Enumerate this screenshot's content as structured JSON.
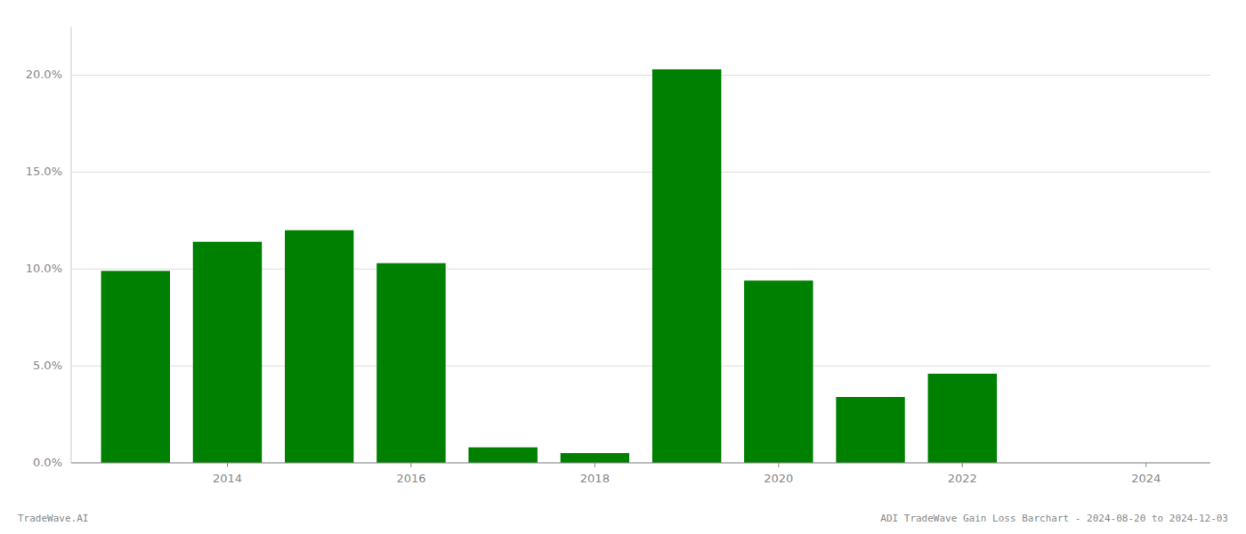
{
  "chart_data": {
    "type": "bar",
    "x": [
      2013,
      2014,
      2015,
      2016,
      2017,
      2018,
      2019,
      2020,
      2021,
      2022,
      2023
    ],
    "values": [
      0.099,
      0.114,
      0.12,
      0.103,
      0.008,
      0.005,
      0.203,
      0.094,
      0.034,
      0.046,
      0.0
    ],
    "color": "#008000",
    "xlim": [
      2012.3,
      2024.7
    ],
    "xticks": [
      2014,
      2016,
      2018,
      2020,
      2022,
      2024
    ],
    "ylim": [
      0,
      0.225
    ],
    "yticks": [
      {
        "value": 0.0,
        "label": "0.0%"
      },
      {
        "value": 0.05,
        "label": "5.0%"
      },
      {
        "value": 0.1,
        "label": "10.0%"
      },
      {
        "value": 0.15,
        "label": "15.0%"
      },
      {
        "value": 0.2,
        "label": "20.0%"
      }
    ],
    "grid": true,
    "annotations": [
      "TradeWave.AI",
      "ADI TradeWave Gain Loss Barchart - 2024-08-20 to 2024-12-03"
    ]
  }
}
